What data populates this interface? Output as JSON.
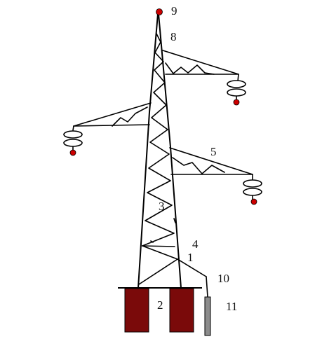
{
  "labels": {
    "l1": "1",
    "l2": "2",
    "l3": "3",
    "l4": "4",
    "l5": "5",
    "l8": "8",
    "l9": "9",
    "l10": "10",
    "l11": "11"
  },
  "colors": {
    "foundation": "#7a0a0a",
    "insulator_tip": "#cc0000",
    "ground_rod": "#8c8c8c",
    "line": "#000000"
  }
}
